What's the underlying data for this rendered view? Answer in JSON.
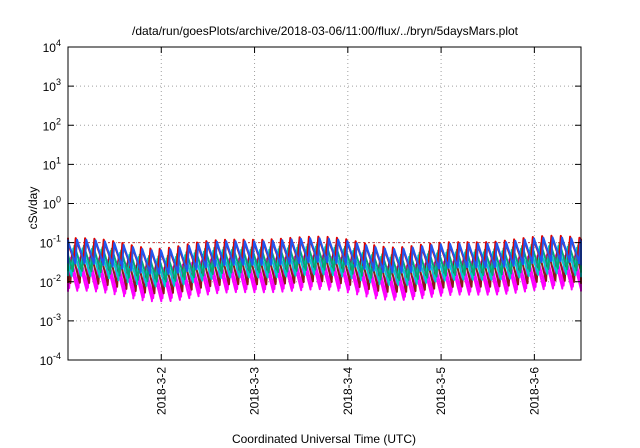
{
  "chart_data": {
    "type": "line",
    "title": "/data/run/goesPlots/archive/2018-03-06/11:00/flux/../bryn/5daysMars.plot",
    "xlabel": "Coordinated Universal Time (UTC)",
    "ylabel": "cSv/day",
    "yscale": "log",
    "ylim": [
      0.0001,
      10000
    ],
    "yticks": [
      {
        "base": "10",
        "exp": "-4"
      },
      {
        "base": "10",
        "exp": "-3"
      },
      {
        "base": "10",
        "exp": "-2"
      },
      {
        "base": "10",
        "exp": "-1"
      },
      {
        "base": "10",
        "exp": "0"
      },
      {
        "base": "10",
        "exp": "1"
      },
      {
        "base": "10",
        "exp": "2"
      },
      {
        "base": "10",
        "exp": "3"
      },
      {
        "base": "10",
        "exp": "4"
      }
    ],
    "xlim_days": [
      1.0,
      6.5
    ],
    "xticks": [
      {
        "label": "2018-3-2",
        "day": 2
      },
      {
        "label": "2018-3-3",
        "day": 3
      },
      {
        "label": "2018-3-4",
        "day": 4
      },
      {
        "label": "2018-3-5",
        "day": 5
      },
      {
        "label": "2018-3-6",
        "day": 6
      }
    ],
    "grid": true,
    "legend": "none",
    "reference_line": {
      "value": 0.1,
      "color": "#cc3333"
    },
    "sawtooth": {
      "cycles_per_day": 10,
      "note": "each series rises to a peak then decays exponentially, repeating ~10 times per day"
    },
    "series": [
      {
        "color": "#ff00ff",
        "peak": 0.03,
        "trough": 0.005
      },
      {
        "color": "#ff00ff",
        "peak": 0.035,
        "trough": 0.006
      },
      {
        "color": "#8b1a1a",
        "peak": 0.05,
        "trough": 0.008
      },
      {
        "color": "#00cccc",
        "peak": 0.06,
        "trough": 0.012
      },
      {
        "color": "#00aa77",
        "peak": 0.07,
        "trough": 0.016
      },
      {
        "color": "#dd0000",
        "peak": 0.11,
        "trough": 0.03
      },
      {
        "color": "#2255ee",
        "peak": 0.1,
        "trough": 0.025
      }
    ]
  }
}
